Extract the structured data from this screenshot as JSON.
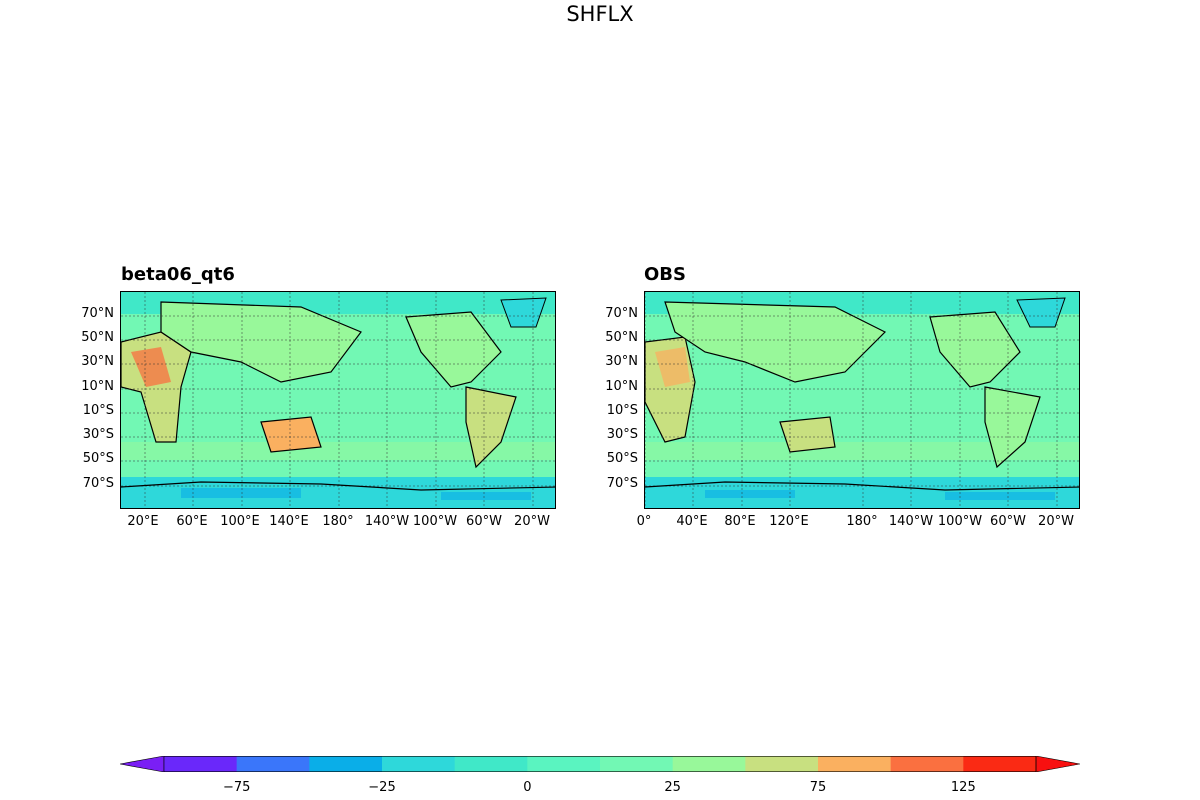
{
  "figure": {
    "title": "SHFLX"
  },
  "panels": [
    {
      "title": "beta06_qt6",
      "ylabels": [
        "70°N",
        "50°N",
        "30°N",
        "10°N",
        "10°S",
        "30°S",
        "50°S",
        "70°S"
      ],
      "xlabels": [
        "20°E",
        "60°E",
        "100°E",
        "140°E",
        "180°",
        "140°W",
        "100°W",
        "60°W",
        "20°W"
      ]
    },
    {
      "title": "OBS",
      "ylabels": [
        "70°N",
        "50°N",
        "30°N",
        "10°N",
        "10°S",
        "30°S",
        "50°S",
        "70°S"
      ],
      "xlabels": [
        "0°",
        "40°E",
        "80°E",
        "120°E",
        "180°",
        "140°W",
        "100°W",
        "60°W",
        "20°W"
      ]
    }
  ],
  "colorbar": {
    "levels": [
      -100,
      -87.5,
      -75,
      -50,
      -25,
      -12.5,
      0,
      12.5,
      25,
      50,
      75,
      100,
      125,
      150
    ],
    "ticks": [
      "−75",
      "−25",
      "0",
      "25",
      "75",
      "125"
    ],
    "tick_values": [
      -75,
      -25,
      0,
      25,
      75,
      125
    ],
    "colors": [
      "#7a1ff5",
      "#6a28fa",
      "#3a76fa",
      "#0aaee8",
      "#2ed8da",
      "#40e8c8",
      "#5af4c0",
      "#72f8b4",
      "#98f89a",
      "#c8e080",
      "#fab060",
      "#fa7040",
      "#fa2a14",
      "#f81010"
    ]
  },
  "chart_data": {
    "type": "heatmap",
    "title": "SHFLX",
    "variable": "SHFLX",
    "panels": [
      "beta06_qt6",
      "OBS"
    ],
    "colorbar_range": [
      -100,
      150
    ],
    "projection": "PlateCarree"
  }
}
